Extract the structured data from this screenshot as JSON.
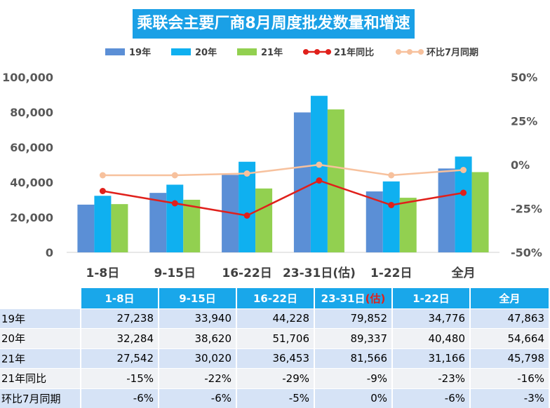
{
  "title": "乘联会主要厂商8月周度批发数量和增速",
  "chart_data": {
    "type": "bar",
    "title": "乘联会主要厂商8月周度批发数量和增速",
    "categories": [
      "1-8日",
      "9-15日",
      "16-22日",
      "23-31日(估)",
      "1-22日",
      "全月"
    ],
    "series": [
      {
        "name": "19年",
        "type": "bar",
        "axis": "left",
        "color": "#5b8fd6",
        "values": [
          27238,
          33940,
          44228,
          79852,
          34776,
          47863
        ]
      },
      {
        "name": "20年",
        "type": "bar",
        "axis": "left",
        "color": "#0fb0f0",
        "values": [
          32284,
          38620,
          51706,
          89337,
          40480,
          54664
        ]
      },
      {
        "name": "21年",
        "type": "bar",
        "axis": "left",
        "color": "#92d050",
        "values": [
          27542,
          30020,
          36453,
          81566,
          31166,
          45798
        ]
      },
      {
        "name": "21年同比",
        "type": "line",
        "axis": "right",
        "color": "#e0201b",
        "values": [
          -0.15,
          -0.22,
          -0.29,
          -0.09,
          -0.23,
          -0.16
        ]
      },
      {
        "name": "环比7月同期",
        "type": "line",
        "axis": "right",
        "color": "#f7c19d",
        "values": [
          -0.06,
          -0.06,
          -0.05,
          0.0,
          -0.06,
          -0.03
        ]
      }
    ],
    "y_left": {
      "min": 0,
      "max": 100000,
      "ticks": [
        "0",
        "20,000",
        "40,000",
        "60,000",
        "80,000",
        "100,000"
      ]
    },
    "y_right": {
      "min": -0.5,
      "max": 0.5,
      "ticks": [
        "-50%",
        "-25%",
        "0%",
        "25%",
        "50%"
      ]
    },
    "legend_position": "top",
    "grid": false
  },
  "table": {
    "headers": [
      "1-8日",
      "9-15日",
      "16-22日",
      "23-31日",
      "1-22日",
      "全月"
    ],
    "header_suffix": "(估)",
    "rows": [
      {
        "label": "19年",
        "values": [
          "27,238",
          "33,940",
          "44,228",
          "79,852",
          "34,776",
          "47,863"
        ]
      },
      {
        "label": "20年",
        "values": [
          "32,284",
          "38,620",
          "51,706",
          "89,337",
          "40,480",
          "54,664"
        ]
      },
      {
        "label": "21年",
        "values": [
          "27,542",
          "30,020",
          "36,453",
          "81,566",
          "31,166",
          "45,798"
        ]
      },
      {
        "label": "21年同比",
        "values": [
          "-15%",
          "-22%",
          "-29%",
          "-9%",
          "-23%",
          "-16%"
        ]
      },
      {
        "label": "环比7月同期",
        "values": [
          "-6%",
          "-6%",
          "-5%",
          "0%",
          "-6%",
          "-3%"
        ]
      }
    ]
  }
}
